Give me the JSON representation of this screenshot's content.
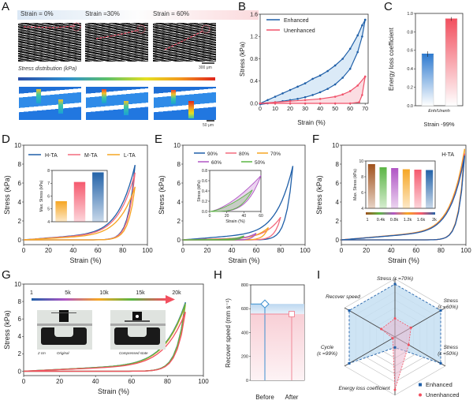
{
  "figure": {
    "panels": [
      "A",
      "B",
      "C",
      "D",
      "E",
      "F",
      "G",
      "H",
      "I"
    ]
  },
  "panel_a": {
    "strain_labels": [
      "Strain = 0%",
      "Strain =30%",
      "Strain = 60%"
    ],
    "scale_bar_top": "300 μm",
    "stress_distribution_label": "Stress distribution (kPa)",
    "scale_bar_bottom": "50 μm",
    "colormap": [
      "#2b4fa8",
      "#2f8fd0",
      "#5cc06a",
      "#e5e020",
      "#f39a1e",
      "#e0241c"
    ]
  },
  "chart_data": [
    {
      "id": "B",
      "type": "line",
      "xlabel": "Strain (%)",
      "ylabel": "Stress (kPa)",
      "xlim": [
        0,
        72
      ],
      "ylim": [
        0,
        1.6
      ],
      "xticks": [
        0,
        10,
        20,
        30,
        40,
        50,
        60,
        70
      ],
      "yticks": [
        "0.0",
        "0.4",
        "0.8",
        "1.2",
        "1.6"
      ],
      "legend": "top-left",
      "series": [
        {
          "name": "Enhanced",
          "color": "#1f5fa8",
          "fill": "#dbeaf7",
          "loading": {
            "x": [
              0,
              5,
              10,
              15,
              20,
              25,
              30,
              35,
              40,
              45,
              50,
              55,
              60,
              65,
              68,
              70
            ],
            "y": [
              0,
              0.06,
              0.12,
              0.18,
              0.24,
              0.3,
              0.36,
              0.44,
              0.5,
              0.58,
              0.68,
              0.8,
              0.98,
              1.22,
              1.4,
              1.5
            ]
          },
          "unloading": {
            "x": [
              70,
              68,
              65,
              60,
              55,
              50,
              45,
              40,
              35,
              30,
              25,
              20,
              15,
              10,
              5,
              0
            ],
            "y": [
              1.5,
              1.2,
              0.92,
              0.62,
              0.46,
              0.34,
              0.26,
              0.2,
              0.15,
              0.11,
              0.08,
              0.06,
              0.04,
              0.02,
              0.0,
              -0.02
            ]
          }
        },
        {
          "name": "Unenhanced",
          "color": "#f0526a",
          "fill": "#fbdde2",
          "loading": {
            "x": [
              0,
              10,
              20,
              30,
              40,
              50,
              55,
              60,
              65,
              70
            ],
            "y": [
              0,
              0.02,
              0.04,
              0.06,
              0.08,
              0.12,
              0.16,
              0.22,
              0.32,
              0.48
            ]
          },
          "unloading": {
            "x": [
              70,
              68,
              66,
              60,
              50,
              40,
              30,
              20,
              10,
              0
            ],
            "y": [
              0.48,
              0.15,
              0.02,
              0.0,
              0.0,
              0.0,
              0.0,
              0.0,
              0.0,
              0.0
            ]
          }
        }
      ]
    },
    {
      "id": "C",
      "type": "bar",
      "ylabel": "Energy loss coefficient",
      "xlabel": "Strain -99%",
      "category_label": "Enh/Unenh",
      "ylim": [
        0,
        1.0
      ],
      "yticks": [
        "0.0",
        "0.2",
        "0.4",
        "0.6",
        "0.8",
        "1.0"
      ],
      "categories": [
        "Enhanced",
        "Unenhanced"
      ],
      "values": [
        0.56,
        0.94
      ],
      "errors": [
        0.03,
        0.02
      ],
      "colors": [
        "#2f7bd0",
        "#f2505f"
      ]
    },
    {
      "id": "D",
      "type": "line",
      "xlabel": "Strain (%)",
      "ylabel": "Stress (kPa)",
      "xlim": [
        0,
        100
      ],
      "ylim": [
        -0.5,
        10
      ],
      "xticks": [
        0,
        20,
        40,
        60,
        80,
        100
      ],
      "yticks": [
        0,
        2,
        4,
        6,
        8,
        10
      ],
      "legend": "top",
      "series": [
        {
          "name": "H-TA",
          "color": "#1f5fa8",
          "peak": 7.9
        },
        {
          "name": "M-TA",
          "color": "#f26b7e",
          "peak": 7.1
        },
        {
          "name": "L-TA",
          "color": "#f6a623",
          "peak": 5.6
        }
      ],
      "max_strain": 90,
      "inset": {
        "type": "bar",
        "ylabel": "Max. Stress (kPa)",
        "ylim": [
          4,
          8
        ],
        "yticks": [
          4,
          5,
          6,
          7,
          8
        ],
        "categories": [
          "L-TA",
          "M-TA",
          "H-TA"
        ],
        "values": [
          5.6,
          7.1,
          7.85
        ],
        "colors": [
          "#f6a623",
          "#f5596e",
          "#2463a8"
        ]
      }
    },
    {
      "id": "E",
      "type": "line",
      "xlabel": "Strain (%)",
      "ylabel": "Stress (kPa)",
      "xlim": [
        0,
        100
      ],
      "ylim": [
        -0.5,
        10
      ],
      "xticks": [
        0,
        20,
        40,
        60,
        80,
        100
      ],
      "yticks": [
        0,
        2,
        4,
        6,
        8,
        10
      ],
      "legend": "top",
      "series": [
        {
          "name": "90%",
          "color": "#1f5fa8",
          "max_strain": 90,
          "peak": 7.8
        },
        {
          "name": "80%",
          "color": "#f26b7e",
          "max_strain": 80,
          "peak": 2.4
        },
        {
          "name": "70%",
          "color": "#f6a623",
          "max_strain": 70,
          "peak": 1.3
        },
        {
          "name": "60%",
          "color": "#b055c4",
          "max_strain": 60,
          "peak": 0.7
        },
        {
          "name": "50%",
          "color": "#5bb544",
          "max_strain": 50,
          "peak": 0.42
        }
      ],
      "inset": {
        "type": "line",
        "xlabel": "Strain (%)",
        "ylabel": "Stress (kPa)",
        "xlim": [
          0,
          60
        ],
        "ylim": [
          0,
          0.8
        ],
        "xticks": [
          0,
          20,
          40,
          60
        ],
        "yticks": [
          "0.0",
          "0.2",
          "0.4",
          "0.6",
          "0.8"
        ],
        "series": [
          {
            "name": "60%",
            "color": "#b055c4",
            "max_strain": 60,
            "peak": 0.7
          },
          {
            "name": "50%",
            "color": "#5bb544",
            "max_strain": 50,
            "peak": 0.42
          }
        ]
      }
    },
    {
      "id": "F",
      "type": "line",
      "title": "H-TA",
      "xlabel": "Strain (%)",
      "ylabel": "Stress (kPa)",
      "xlim": [
        0,
        100
      ],
      "ylim": [
        -0.5,
        10
      ],
      "xticks": [
        0,
        20,
        40,
        60,
        80,
        100
      ],
      "yticks": [
        0,
        2,
        4,
        6,
        8,
        10
      ],
      "max_strain": 99,
      "inset": {
        "type": "bar",
        "ylabel": "Max. Stress (kPa)",
        "ylim": [
          4,
          10
        ],
        "yticks": [
          4,
          6,
          8,
          10
        ],
        "categories": [
          "1",
          "0.4k",
          "0.8k",
          "1.2k",
          "1.6k",
          "2k"
        ],
        "values": [
          9.6,
          9.2,
          9.1,
          8.95,
          8.9,
          8.85
        ],
        "colors": [
          "#a0521d",
          "#5bb544",
          "#b055c4",
          "#f6a623",
          "#f5596e",
          "#2463a8"
        ]
      }
    },
    {
      "id": "G",
      "type": "line",
      "xlabel": "Strain (%)",
      "ylabel": "Stress (kPa)",
      "xlim": [
        0,
        100
      ],
      "ylim": [
        -0.5,
        10
      ],
      "xticks": [
        0,
        20,
        40,
        60,
        80,
        100
      ],
      "yticks": [
        0,
        2,
        4,
        6,
        8,
        10
      ],
      "max_strain": 90,
      "cycle_bar_labels": [
        "1",
        "5k",
        "10k",
        "15k",
        "20k"
      ],
      "series": [
        {
          "name": "1",
          "color": "#1f5fa8",
          "peak": 7.9
        },
        {
          "name": "5k",
          "color": "#b055c4",
          "peak": 7.8
        },
        {
          "name": "10k",
          "color": "#f6a623",
          "peak": 7.6
        },
        {
          "name": "15k",
          "color": "#5bb544",
          "peak": 7.8
        },
        {
          "name": "20k",
          "color": "#f2505f",
          "peak": 6.8
        }
      ],
      "photo_labels": {
        "scale": "2 cm",
        "original": "Original",
        "compressed": "Compressed state"
      }
    },
    {
      "id": "H",
      "type": "bar",
      "ylabel": "Recover speed (mm s⁻¹)",
      "ylim": [
        0,
        800
      ],
      "yticks": [
        0,
        200,
        400,
        600,
        800
      ],
      "categories": [
        "Before",
        "After"
      ],
      "values": [
        640,
        555
      ],
      "colors": [
        "#3d8fd0",
        "#f08a99"
      ]
    },
    {
      "id": "I",
      "type": "radar",
      "axes": [
        "Stress (ε =70%)",
        "Stress (ε =60%)",
        "Stress (ε =50%)",
        "Energy loss coefficient",
        "Cycle (ε =99%)",
        "Recover speed"
      ],
      "series": [
        {
          "name": "Enhanced",
          "color": "#1f5fa8",
          "values": [
            1.0,
            1.0,
            1.0,
            0.2,
            1.0,
            1.0
          ]
        },
        {
          "name": "Unenhanced",
          "color": "#f2505f",
          "values": [
            0.35,
            0.35,
            0.3,
            1.0,
            0.05,
            0.3
          ]
        }
      ],
      "legend": "bottom-right"
    }
  ]
}
